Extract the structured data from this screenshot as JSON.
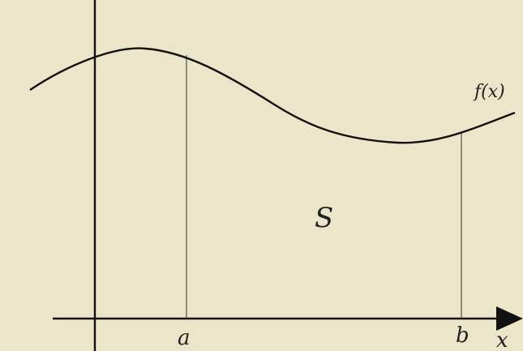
{
  "colors": {
    "background": "#ebe6c9",
    "stroke": "#111111",
    "label": "#222222"
  },
  "labels": {
    "function": "f(x)",
    "area": "S",
    "lower_bound": "a",
    "upper_bound": "b",
    "x_axis": "x"
  },
  "icons": {
    "axis_arrow": "right-arrowhead"
  }
}
